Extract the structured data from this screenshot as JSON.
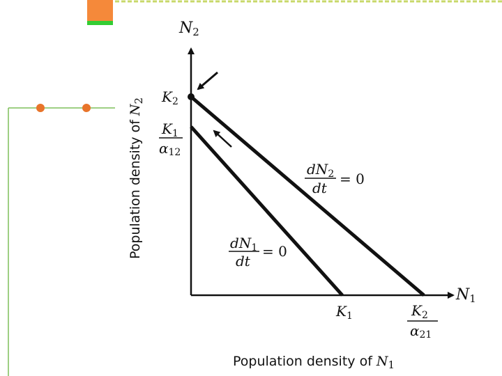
{
  "colors": {
    "accent_orange": "#f5893a",
    "accent_green": "#33cc33",
    "frame_green": "#7fbf5a",
    "bullet_orange": "#e8742a",
    "ink": "#111111"
  },
  "diagram": {
    "y_axis_var": "N",
    "y_axis_sub": "2",
    "x_axis_var": "N",
    "x_axis_sub": "1",
    "y_axis_title": "Population density of ",
    "y_axis_title_var": "N",
    "y_axis_title_sub": "2",
    "x_axis_title": "Population density of ",
    "x_axis_title_var": "N",
    "x_axis_title_sub": "1",
    "k2_var": "K",
    "k2_sub": "2",
    "k1_over_a12_num_var": "K",
    "k1_over_a12_num_sub": "1",
    "k1_over_a12_den_var": "α",
    "k1_over_a12_den_sub": "12",
    "k1_var": "K",
    "k1_sub": "1",
    "k2_over_a21_num_var": "K",
    "k2_over_a21_num_sub": "2",
    "k2_over_a21_den_var": "α",
    "k2_over_a21_den_sub": "21",
    "iso2_num_var": "dN",
    "iso2_num_sub": "2",
    "iso2_den": "dt",
    "iso2_rhs": "= 0",
    "iso1_num_var": "dN",
    "iso1_num_sub": "1",
    "iso1_den": "dt",
    "iso1_rhs": "= 0"
  }
}
